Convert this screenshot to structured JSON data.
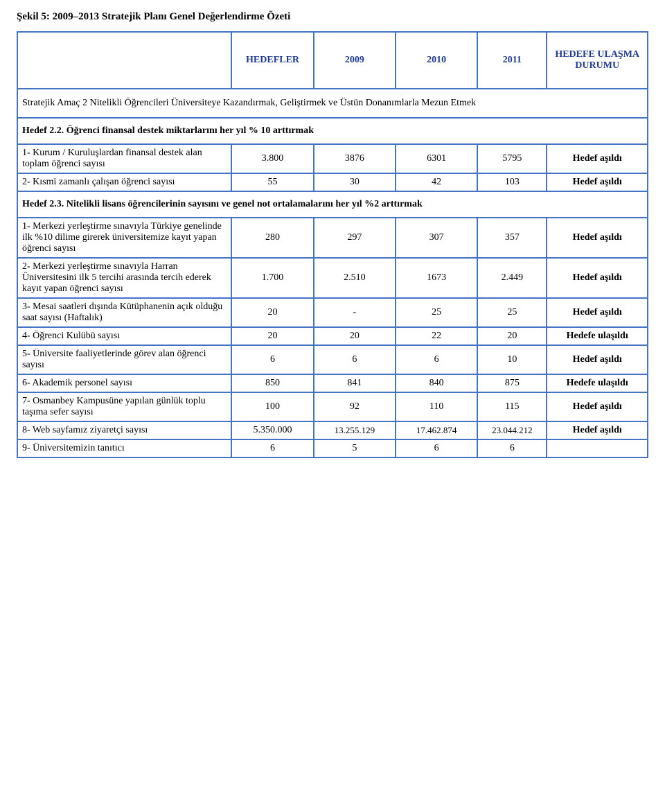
{
  "figure_title": "Şekil 5: 2009–2013 Stratejik Planı Genel Değerlendirme Özeti",
  "header": {
    "hedefler": "HEDEFLER",
    "y2009": "2009",
    "y2010": "2010",
    "y2011": "2011",
    "blank": "",
    "durum": "HEDEFE ULAŞMA DURUMU"
  },
  "section": "Stratejik Amaç 2 Nitelikli Öğrencileri Üniversiteye Kazandırmak, Geliştirmek ve Üstün Donanımlarla Mezun Etmek",
  "hedef22_title": "Hedef 2.2. Öğrenci finansal destek miktarlarını her yıl % 10 arttırmak",
  "hedef22": [
    {
      "desc": "1- Kurum / Kuruluşlardan finansal destek alan toplam öğrenci sayısı",
      "c1": "3.800",
      "c2": "3876",
      "c3": "6301",
      "c4": "5795",
      "status": "Hedef aşıldı"
    },
    {
      "desc": "2- Kısmi zamanlı çalışan öğrenci sayısı",
      "c1": "55",
      "c2": "30",
      "c3": "42",
      "c4": "103",
      "status": "Hedef aşıldı"
    }
  ],
  "hedef23_title": "Hedef 2.3. Nitelikli lisans öğrencilerinin sayısını ve genel not ortalamalarını her yıl %2 arttırmak",
  "hedef23": [
    {
      "desc": "1- Merkezi yerleştirme sınavıyla Türkiye genelinde ilk %10 dilime girerek üniversitemize kayıt yapan öğrenci sayısı",
      "c1": "280",
      "c2": "297",
      "c3": "307",
      "c4": "357",
      "status": "Hedef aşıldı"
    },
    {
      "desc": "2- Merkezi yerleştirme sınavıyla Harran Üniversitesini ilk 5 tercihi arasında tercih ederek kayıt yapan öğrenci sayısı",
      "c1": "1.700",
      "c2": "2.510",
      "c3": "1673",
      "c4": "2.449",
      "status": "Hedef aşıldı"
    },
    {
      "desc": "3- Mesai saatleri dışında Kütüphanenin açık olduğu saat sayısı (Haftalık)",
      "c1": "20",
      "c2": "-",
      "c3": "25",
      "c4": "25",
      "status": "Hedef aşıldı"
    },
    {
      "desc": "4- Öğrenci Kulübü sayısı",
      "c1": "20",
      "c2": "20",
      "c3": "22",
      "c4": "20",
      "status": "Hedefe ulaşıldı"
    },
    {
      "desc": "5- Üniversite faaliyetlerinde görev alan öğrenci sayısı",
      "c1": "6",
      "c2": "6",
      "c3": "6",
      "c4": "10",
      "status": "Hedef aşıldı"
    },
    {
      "desc": "6- Akademik personel sayısı",
      "c1": "850",
      "c2": "841",
      "c3": "840",
      "c4": "875",
      "status": "Hedefe ulaşıldı"
    },
    {
      "desc": "7- Osmanbey Kampusüne yapılan günlük toplu taşıma sefer sayısı",
      "c1": "100",
      "c2": "92",
      "c3": "110",
      "c4": "115",
      "status": "Hedef aşıldı"
    },
    {
      "desc": "8- Web sayfamız ziyaretçi sayısı",
      "c1": "5.350.000",
      "c2": "13.255.129",
      "c3": "17.462.874",
      "c4": "23.044.212",
      "status": "Hedef aşıldı"
    },
    {
      "desc": "9- Üniversitemizin tanıtıcı",
      "c1": "6",
      "c2": "5",
      "c3": "6",
      "c4": "6",
      "status": ""
    }
  ],
  "colors": {
    "border": "#4472c4",
    "header_text": "#1f3a93",
    "text": "#000000",
    "background": "#ffffff"
  },
  "typography": {
    "font_family": "Times New Roman",
    "base_fontsize_pt": 11,
    "title_fontsize_pt": 11,
    "title_weight": "bold"
  }
}
